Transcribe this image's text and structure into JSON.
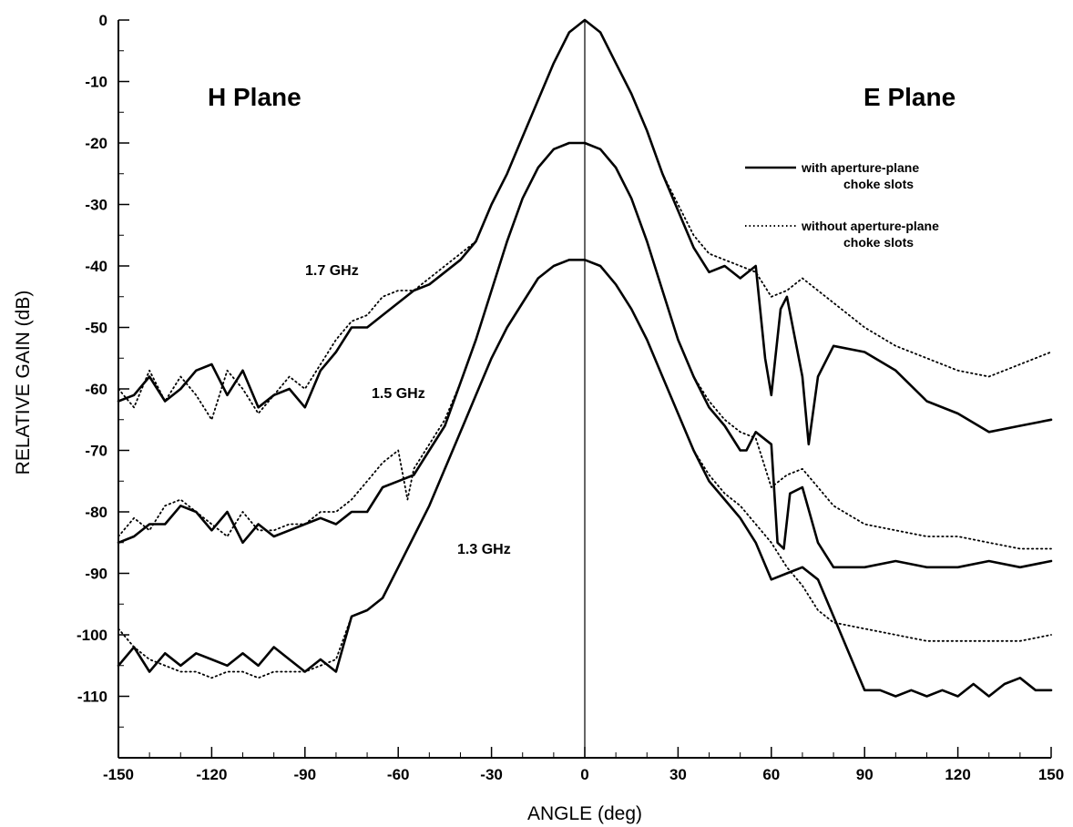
{
  "chart_data": {
    "type": "line",
    "xlabel": "ANGLE (deg)",
    "ylabel": "RELATIVE GAIN (dB)",
    "xlim": [
      -150,
      150
    ],
    "ylim": [
      -120,
      0
    ],
    "x_ticks": [
      -150,
      -120,
      -90,
      -60,
      -30,
      0,
      30,
      60,
      90,
      120,
      150
    ],
    "y_ticks": [
      0,
      -10,
      -20,
      -30,
      -40,
      -50,
      -60,
      -70,
      -80,
      -90,
      -100,
      -110
    ],
    "x_tick_labels": [
      "-150",
      "-120",
      "-90",
      "-60",
      "-30",
      "0",
      "30",
      "60",
      "90",
      "120",
      "150"
    ],
    "y_tick_labels": [
      "0",
      "-10",
      "-20",
      "-30",
      "-40",
      "-50",
      "-60",
      "-70",
      "-80",
      "-90",
      "-100",
      "-110"
    ],
    "grid": false,
    "vertical_reference_x": 0,
    "annotations": {
      "h_plane": "H Plane",
      "e_plane": "E Plane",
      "freq_17": "1.7 GHz",
      "freq_15": "1.5 GHz",
      "freq_13": "1.3 GHz"
    },
    "legend": {
      "position": "top-right",
      "solid_line1": "with aperture-plane",
      "solid_line2": "choke slots",
      "dotted_line1": "without aperture-plane",
      "dotted_line2": "choke slots"
    },
    "series": [
      {
        "frequency": "1.7 GHz",
        "style": "solid",
        "x": [
          -150,
          -145,
          -140,
          -135,
          -130,
          -125,
          -120,
          -115,
          -110,
          -105,
          -100,
          -95,
          -90,
          -85,
          -80,
          -75,
          -70,
          -65,
          -60,
          -55,
          -50,
          -45,
          -40,
          -35,
          -30,
          -25,
          -20,
          -15,
          -10,
          -5,
          0,
          5,
          10,
          15,
          20,
          25,
          30,
          35,
          40,
          45,
          50,
          55,
          58,
          60,
          63,
          65,
          70,
          72,
          75,
          80,
          90,
          100,
          110,
          120,
          130,
          140,
          150
        ],
        "y": [
          -62,
          -61,
          -58,
          -62,
          -60,
          -57,
          -56,
          -61,
          -57,
          -63,
          -61,
          -60,
          -63,
          -57,
          -54,
          -50,
          -50,
          -48,
          -46,
          -44,
          -43,
          -41,
          -39,
          -36,
          -30,
          -25,
          -19,
          -13,
          -7,
          -2,
          0,
          -2,
          -7,
          -12,
          -18,
          -25,
          -31,
          -37,
          -41,
          -40,
          -42,
          -40,
          -55,
          -61,
          -47,
          -45,
          -58,
          -69,
          -58,
          -53,
          -54,
          -57,
          -62,
          -64,
          -67,
          -66,
          -65
        ]
      },
      {
        "frequency": "1.7 GHz",
        "style": "dotted",
        "x": [
          -150,
          -145,
          -140,
          -135,
          -130,
          -125,
          -120,
          -115,
          -110,
          -105,
          -100,
          -95,
          -90,
          -85,
          -80,
          -75,
          -70,
          -65,
          -60,
          -55,
          -50,
          -45,
          -40,
          -35,
          -30,
          -25,
          -20,
          -15,
          -10,
          -5,
          0,
          5,
          10,
          15,
          20,
          25,
          30,
          35,
          40,
          45,
          50,
          55,
          60,
          65,
          70,
          75,
          80,
          90,
          100,
          110,
          120,
          130,
          140,
          150
        ],
        "y": [
          -60,
          -63,
          -57,
          -62,
          -58,
          -61,
          -65,
          -57,
          -60,
          -64,
          -61,
          -58,
          -60,
          -56,
          -52,
          -49,
          -48,
          -45,
          -44,
          -44,
          -42,
          -40,
          -38,
          -36,
          -30,
          -25,
          -19,
          -13,
          -7,
          -2,
          0,
          -2,
          -7,
          -12,
          -18,
          -25,
          -30,
          -35,
          -38,
          -39,
          -40,
          -41,
          -45,
          -44,
          -42,
          -44,
          -46,
          -50,
          -53,
          -55,
          -57,
          -58,
          -56,
          -54
        ]
      },
      {
        "frequency": "1.5 GHz",
        "style": "solid",
        "x": [
          -150,
          -145,
          -140,
          -135,
          -130,
          -125,
          -120,
          -115,
          -110,
          -105,
          -100,
          -95,
          -90,
          -85,
          -80,
          -75,
          -70,
          -65,
          -60,
          -55,
          -50,
          -45,
          -40,
          -35,
          -30,
          -25,
          -20,
          -15,
          -10,
          -5,
          0,
          5,
          10,
          15,
          20,
          25,
          30,
          35,
          40,
          45,
          50,
          52,
          55,
          60,
          62,
          64,
          66,
          70,
          75,
          80,
          90,
          100,
          110,
          120,
          130,
          140,
          150
        ],
        "y": [
          -85,
          -84,
          -82,
          -82,
          -79,
          -80,
          -83,
          -80,
          -85,
          -82,
          -84,
          -83,
          -82,
          -81,
          -82,
          -80,
          -80,
          -76,
          -75,
          -74,
          -70,
          -66,
          -59,
          -52,
          -44,
          -36,
          -29,
          -24,
          -21,
          -20,
          -20,
          -21,
          -24,
          -29,
          -36,
          -44,
          -52,
          -58,
          -63,
          -66,
          -70,
          -70,
          -67,
          -69,
          -85,
          -86,
          -77,
          -76,
          -85,
          -89,
          -89,
          -88,
          -89,
          -89,
          -88,
          -89,
          -88
        ]
      },
      {
        "frequency": "1.5 GHz",
        "style": "dotted",
        "x": [
          -150,
          -145,
          -140,
          -135,
          -130,
          -125,
          -120,
          -115,
          -110,
          -105,
          -100,
          -95,
          -90,
          -85,
          -80,
          -75,
          -70,
          -65,
          -60,
          -57,
          -55,
          -50,
          -45,
          -40,
          -35,
          -30,
          -25,
          -20,
          -15,
          -10,
          -5,
          0,
          5,
          10,
          15,
          20,
          25,
          30,
          35,
          40,
          45,
          50,
          55,
          60,
          65,
          70,
          75,
          80,
          90,
          100,
          110,
          120,
          130,
          140,
          150
        ],
        "y": [
          -84,
          -81,
          -83,
          -79,
          -78,
          -80,
          -82,
          -84,
          -80,
          -83,
          -83,
          -82,
          -82,
          -80,
          -80,
          -78,
          -75,
          -72,
          -70,
          -78,
          -73,
          -69,
          -65,
          -59,
          -52,
          -44,
          -36,
          -29,
          -24,
          -21,
          -20,
          -20,
          -21,
          -24,
          -29,
          -36,
          -44,
          -52,
          -58,
          -62,
          -65,
          -67,
          -68,
          -76,
          -74,
          -73,
          -76,
          -79,
          -82,
          -83,
          -84,
          -84,
          -85,
          -86,
          -86
        ]
      },
      {
        "frequency": "1.3 GHz",
        "style": "solid",
        "x": [
          -150,
          -145,
          -140,
          -135,
          -130,
          -125,
          -120,
          -115,
          -110,
          -105,
          -100,
          -95,
          -90,
          -85,
          -80,
          -75,
          -70,
          -65,
          -60,
          -55,
          -50,
          -45,
          -40,
          -35,
          -30,
          -25,
          -20,
          -15,
          -10,
          -5,
          0,
          5,
          10,
          15,
          20,
          25,
          30,
          35,
          40,
          45,
          50,
          55,
          60,
          65,
          70,
          75,
          80,
          85,
          90,
          95,
          100,
          105,
          110,
          115,
          120,
          125,
          130,
          135,
          140,
          145,
          150
        ],
        "y": [
          -105,
          -102,
          -106,
          -103,
          -105,
          -103,
          -104,
          -105,
          -103,
          -105,
          -102,
          -104,
          -106,
          -104,
          -106,
          -97,
          -96,
          -94,
          -89,
          -84,
          -79,
          -73,
          -67,
          -61,
          -55,
          -50,
          -46,
          -42,
          -40,
          -39,
          -39,
          -40,
          -43,
          -47,
          -52,
          -58,
          -64,
          -70,
          -75,
          -78,
          -81,
          -85,
          -91,
          -90,
          -89,
          -91,
          -97,
          -103,
          -109,
          -109,
          -110,
          -109,
          -110,
          -109,
          -110,
          -108,
          -110,
          -108,
          -107,
          -109,
          -109
        ]
      },
      {
        "frequency": "1.3 GHz",
        "style": "dotted",
        "x": [
          -150,
          -145,
          -140,
          -135,
          -130,
          -125,
          -120,
          -115,
          -110,
          -105,
          -100,
          -95,
          -90,
          -85,
          -80,
          -75,
          -70,
          -65,
          -60,
          -55,
          -50,
          -45,
          -40,
          -35,
          -30,
          -25,
          -20,
          -15,
          -10,
          -5,
          0,
          5,
          10,
          15,
          20,
          25,
          30,
          35,
          40,
          45,
          50,
          55,
          60,
          65,
          70,
          75,
          80,
          90,
          100,
          110,
          120,
          130,
          140,
          150
        ],
        "y": [
          -99,
          -102,
          -104,
          -105,
          -106,
          -106,
          -107,
          -106,
          -106,
          -107,
          -106,
          -106,
          -106,
          -105,
          -104,
          -97,
          -96,
          -94,
          -89,
          -84,
          -79,
          -73,
          -67,
          -61,
          -55,
          -50,
          -46,
          -42,
          -40,
          -39,
          -39,
          -40,
          -43,
          -47,
          -52,
          -58,
          -64,
          -70,
          -74,
          -77,
          -79,
          -82,
          -85,
          -89,
          -92,
          -96,
          -98,
          -99,
          -100,
          -101,
          -101,
          -101,
          -101,
          -100
        ]
      }
    ]
  }
}
